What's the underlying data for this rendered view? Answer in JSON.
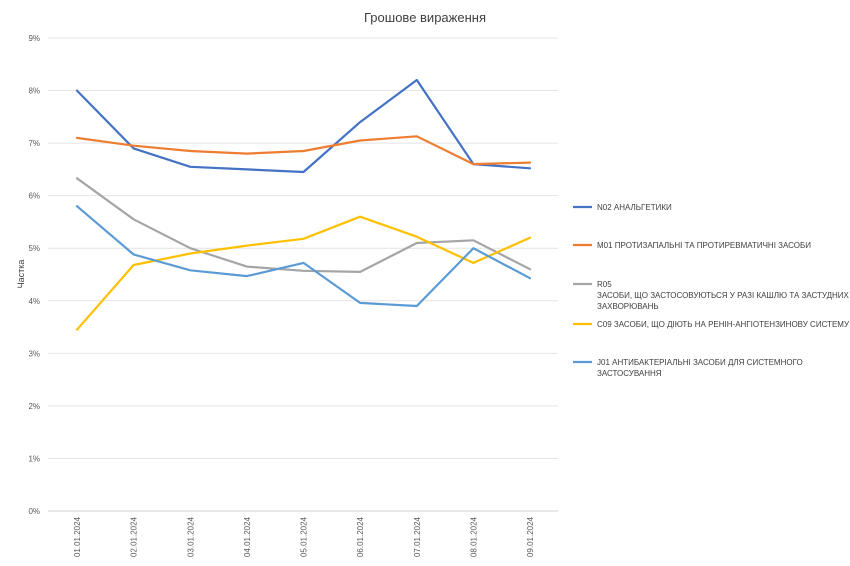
{
  "chart_data": {
    "type": "line",
    "title": "Грошове вираження",
    "ylabel": "Частка",
    "xlabel": "",
    "ylim": [
      0,
      9
    ],
    "y_ticks": [
      "0%",
      "1%",
      "2%",
      "3%",
      "4%",
      "5%",
      "6%",
      "7%",
      "8%",
      "9%"
    ],
    "grid": true,
    "legend_position": "right",
    "categories": [
      "01.01.2024",
      "02.01.2024",
      "03.01.2024",
      "04.01.2024",
      "05.01.2024",
      "06.01.2024",
      "07.01.2024",
      "08.01.2024",
      "09.01.2024"
    ],
    "series": [
      {
        "name": "N02 АНАЛЬГЕТИКИ",
        "color": "#4472C4",
        "values": [
          8.0,
          6.9,
          6.55,
          6.5,
          6.45,
          7.4,
          8.2,
          6.6,
          6.52
        ]
      },
      {
        "name": "M01 ПРОТИЗАПАЛЬНІ ТА ПРОТИРЕВМАТИЧНІ ЗАСОБИ",
        "color": "#ED7D31",
        "values": [
          7.1,
          6.95,
          6.85,
          6.8,
          6.85,
          7.05,
          7.13,
          6.6,
          6.63
        ]
      },
      {
        "name": "R05\nЗАСОБИ, ЩО ЗАСТОСОВУЮТЬСЯ У РАЗІ КАШЛЮ ТА ЗАСТУДНИХ ЗАХВОРЮВАНЬ",
        "color": "#A5A5A5",
        "values": [
          6.33,
          5.55,
          5.0,
          4.65,
          4.57,
          4.55,
          5.1,
          5.15,
          4.6
        ]
      },
      {
        "name": "C09 ЗАСОБИ, ЩО ДІЮТЬ НА РЕНІН-АНГІОТЕНЗИНОВУ СИСТЕМУ",
        "color": "#FFC000",
        "values": [
          3.45,
          4.68,
          4.9,
          5.05,
          5.18,
          5.6,
          5.22,
          4.72,
          5.2
        ]
      },
      {
        "name": "J01 АНТИБАКТЕРІАЛЬНІ ЗАСОБИ ДЛЯ СИСТЕМНОГО ЗАСТОСУВАННЯ",
        "color": "#5B9BD5",
        "values": [
          5.8,
          4.88,
          4.58,
          4.47,
          4.72,
          3.96,
          3.9,
          5.0,
          4.43
        ]
      }
    ]
  }
}
